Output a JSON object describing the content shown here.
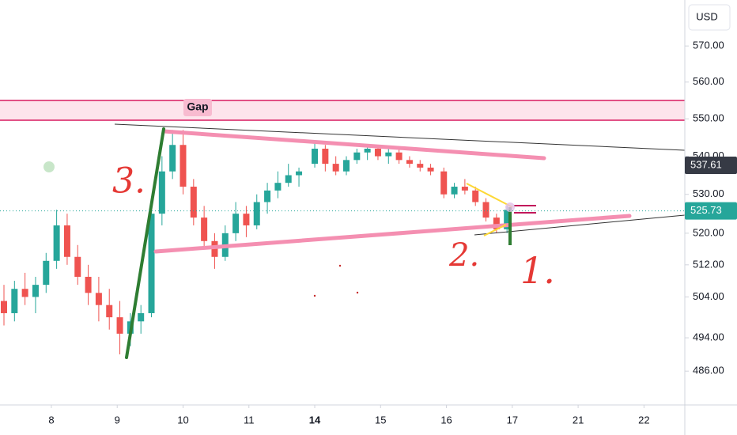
{
  "chart_data": {
    "type": "candlestick",
    "currency": "USD",
    "log_scale": true,
    "up_color": "#26a69a",
    "down_color": "#ef5350",
    "ylim": [
      478,
      583
    ],
    "yticks": [
      {
        "value": 570,
        "label": "570.00"
      },
      {
        "value": 560,
        "label": "560.00"
      },
      {
        "value": 550,
        "label": "550.00"
      },
      {
        "value": 540,
        "label": "540.00"
      },
      {
        "value": 530,
        "label": "530.00"
      },
      {
        "value": 520,
        "label": "520.00"
      },
      {
        "value": 512,
        "label": "512.00"
      },
      {
        "value": 504,
        "label": "504.00"
      },
      {
        "value": 494,
        "label": "494.00"
      },
      {
        "value": 486,
        "label": "486.00"
      }
    ],
    "xlim": [
      -0.78,
      9.62
    ],
    "xticks": [
      {
        "value": 0,
        "label": "8"
      },
      {
        "value": 1,
        "label": "9"
      },
      {
        "value": 2,
        "label": "10"
      },
      {
        "value": 3,
        "label": "11"
      },
      {
        "value": 4,
        "label": "14"
      },
      {
        "value": 5,
        "label": "15"
      },
      {
        "value": 6,
        "label": "16"
      },
      {
        "value": 7,
        "label": "17"
      },
      {
        "value": 8,
        "label": "21"
      },
      {
        "value": 9,
        "label": "22"
      }
    ],
    "x": [
      -0.72,
      -0.56,
      -0.4,
      -0.24,
      -0.08,
      0.08,
      0.24,
      0.4,
      0.56,
      0.72,
      0.88,
      1.04,
      1.2,
      1.36,
      1.52,
      1.68,
      1.84,
      2.0,
      2.16,
      2.32,
      2.48,
      2.64,
      2.8,
      2.96,
      3.12,
      3.28,
      3.44,
      3.6,
      3.76,
      4.0,
      4.16,
      4.32,
      4.48,
      4.64,
      4.8,
      4.96,
      5.12,
      5.28,
      5.44,
      5.6,
      5.76,
      5.96,
      6.12,
      6.28,
      6.44,
      6.6,
      6.76,
      6.92
    ],
    "open": [
      503,
      500,
      506,
      504,
      507,
      513,
      522,
      514,
      509,
      505,
      502,
      499,
      495,
      498,
      500,
      525,
      536,
      543,
      532,
      524,
      518,
      514,
      520,
      525,
      522,
      528,
      531,
      533,
      535,
      538,
      542,
      538,
      536,
      539,
      541,
      542,
      540,
      541,
      539,
      538,
      537,
      536,
      530,
      532,
      531,
      528,
      524,
      521
    ],
    "high": [
      507,
      508,
      510,
      509,
      515,
      526,
      525,
      517,
      512,
      509,
      506,
      503,
      500,
      502,
      528,
      540,
      547,
      547,
      534,
      527,
      520,
      522,
      528,
      527,
      530,
      533,
      536,
      538,
      537,
      544,
      543,
      540,
      540,
      542,
      543,
      543,
      542,
      542,
      540,
      539,
      538,
      537,
      533,
      534,
      532,
      529,
      525,
      527
    ],
    "low": [
      497,
      498,
      502,
      500,
      505,
      511,
      512,
      507,
      502,
      498,
      496,
      490,
      492,
      495,
      499,
      522,
      534,
      530,
      522,
      516,
      511,
      513,
      518,
      519,
      521,
      525,
      529,
      532,
      532,
      537,
      536,
      535,
      535,
      538,
      539,
      539,
      538,
      538,
      537,
      536,
      535,
      529,
      529,
      530,
      527,
      523,
      520,
      520
    ],
    "close": [
      500,
      506,
      504,
      507,
      513,
      522,
      514,
      509,
      505,
      502,
      499,
      495,
      498,
      500,
      525,
      536,
      543,
      532,
      524,
      518,
      514,
      520,
      525,
      522,
      528,
      531,
      533,
      535,
      536,
      542,
      538,
      536,
      539,
      541,
      542,
      540,
      541,
      539,
      538,
      537,
      536,
      530,
      532,
      531,
      528,
      524,
      521,
      526
    ],
    "marker_price": 537.61,
    "last_price": 525.73,
    "annotations": [
      "Gap",
      "3.",
      "2.",
      "1."
    ]
  }
}
